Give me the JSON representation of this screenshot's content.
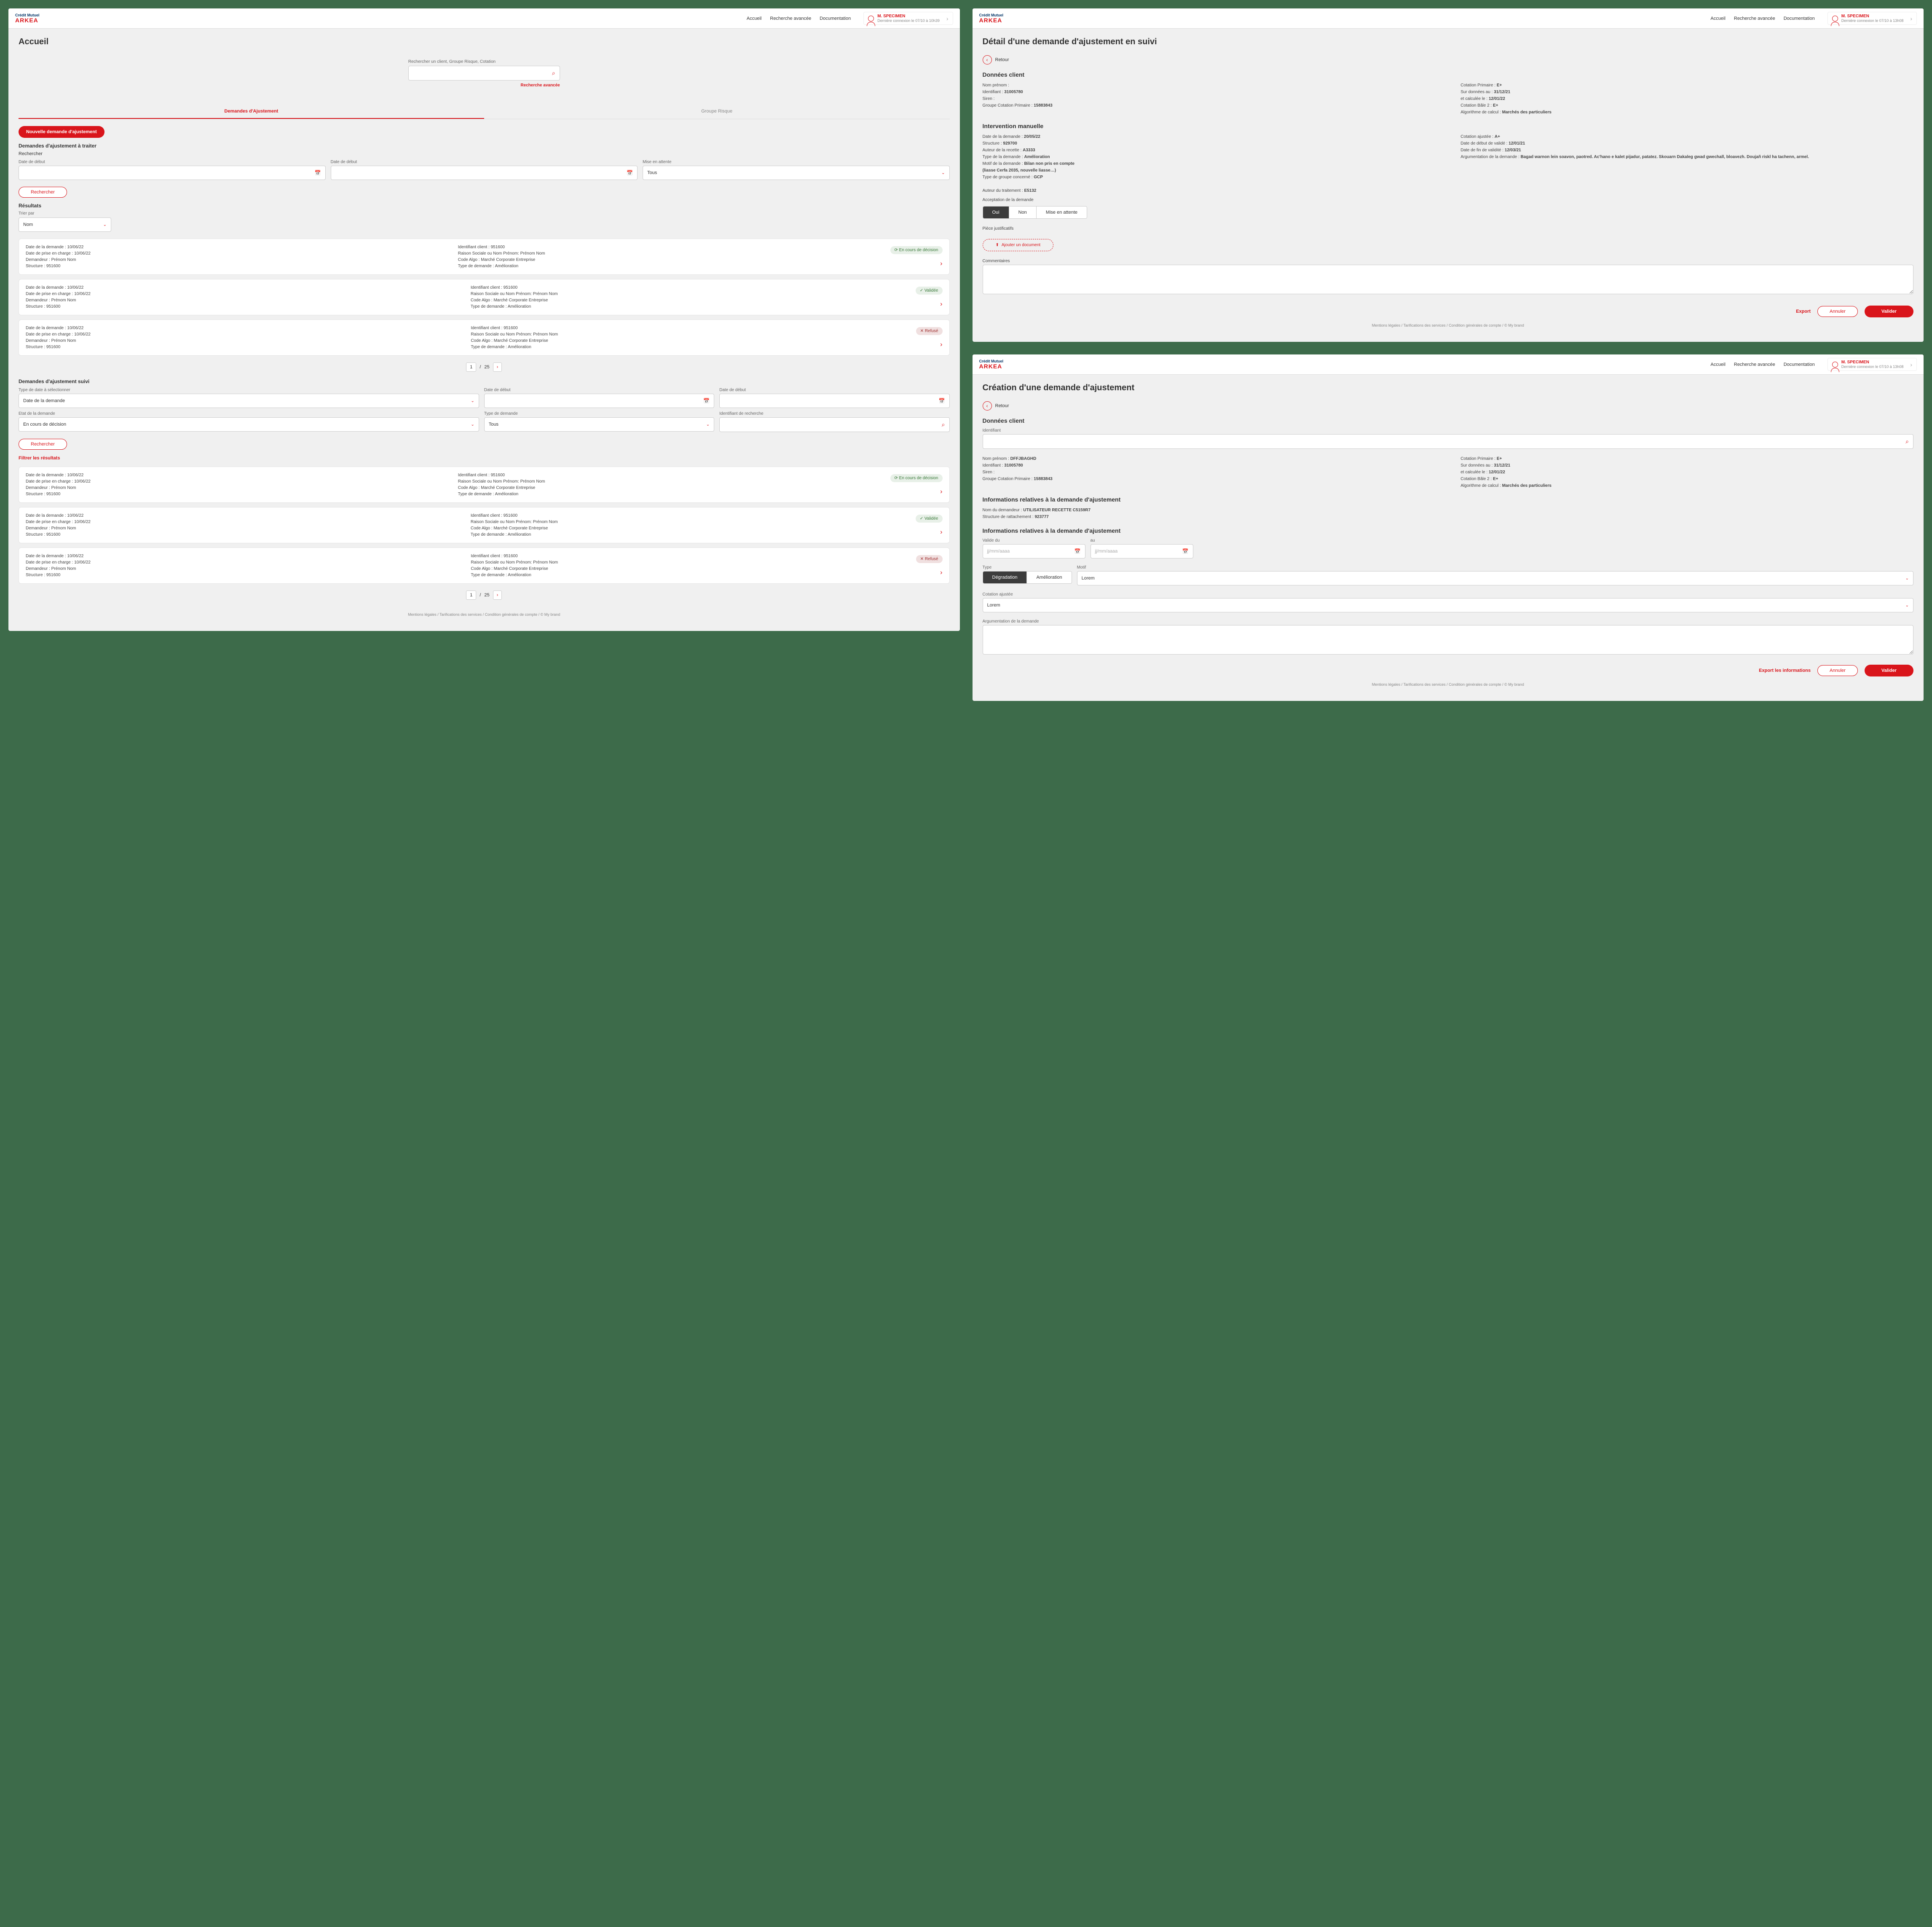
{
  "brand": {
    "top": "Crédit Mutuel",
    "bottom": "ARKEA"
  },
  "nav": {
    "home": "Accueil",
    "adv": "Recherche avancée",
    "doc": "Documentation"
  },
  "user": {
    "name": "M. SPECIMEN",
    "last1": "Dernière connexion le 07/10 à 10h39",
    "last2": "Dernière connexion le 07/10 à 13h08"
  },
  "s1": {
    "title": "Accueil",
    "searchLabel": "Rechercher un client, Groupe Risque, Cotation",
    "advLink": "Recherche avancée",
    "tabs": {
      "adj": "Demandes d'Ajustement",
      "grp": "Groupe Risque"
    },
    "newBtn": "Nouvelle demande d'ajustement",
    "toTreat": "Demandes d'ajustement à traiter",
    "search": "Rechercher",
    "dateDebut": "Date de début",
    "miseAttente": "Mise en attente",
    "tous": "Tous",
    "searchBtn": "Rechercher",
    "results": "Résultats",
    "sortBy": "Trier par",
    "sortVal": "Nom",
    "cardLabels": {
      "dateDemande": "Date de la demande : ",
      "datePrise": "Date de prise en charge : ",
      "demandeur": "Demandeur : ",
      "structure": "Structure : ",
      "idClient": "Identifiant client : ",
      "raison": "Raison Sociale ou Nom Prénom: ",
      "codeAlgo": "Code Algo : ",
      "typeDemande": "Type de demande : "
    },
    "cardVals": {
      "date": "10/06/22",
      "demandeur": "Prénom Nom",
      "structure": "951600",
      "idClient": "951600",
      "raison": "Prénom Nom",
      "codeAlgo": "Marché Corporate Entreprise",
      "typeDemande": "Amélioration"
    },
    "badges": {
      "pending": "En cours de décision",
      "valid": "Validée",
      "refused": "Refusé"
    },
    "page": "1",
    "totalPages": "25",
    "suivi": "Demandes d'ajustement suivi",
    "typeDate": "Type de date à sélectionner",
    "dateDemandeVal": "Date de la demande",
    "etat": "Etat de la demande",
    "etatVal": "En cours de décision",
    "typeDem": "Type de demande",
    "idRech": "Identifiant de recherche",
    "filter": "Filtrer les résultats",
    "footer": "Mentions légales / Tarifications des services / Condition générales de compte / © My brand"
  },
  "s2": {
    "title": "Détail d'une demande d'ajustement en suivi",
    "back": "Retour",
    "dataClient": "Données client",
    "client": {
      "l1": "Nom prénom :",
      "l2k": "Identifiant : ",
      "l2v": "31005780",
      "l3": "Siren :",
      "l4k": "Groupe Cotation Primaire : ",
      "l4v": "15883843",
      "r1k": "Cotation Primaire : ",
      "r1v": "E+",
      "r2k": "Sur données au : ",
      "r2v": "31/12/21",
      "r3k": "et calculée le : ",
      "r3v": "12/01/22",
      "r4k": "Cotation Bâle 2 : ",
      "r4v": "E+",
      "r5k": "Algorithme de calcul : ",
      "r5v": "Marchés des particuliers"
    },
    "interv": "Intervention manuelle",
    "man": {
      "l1k": "Date de la demande : ",
      "l1v": "20/05/22",
      "l2k": "Structure : ",
      "l2v": "929700",
      "l3k": "Auteur de la recette : ",
      "l3v": "A3333",
      "l4k": "Type de la demande : ",
      "l4v": "Amélioration",
      "l5k": "Motif de la demande : ",
      "l5v": "Bilan non pris en compte",
      "l5s": "(liasse Cerfa 2035, nouvelle liasse…)",
      "l6k": "Type de groupe concerné : ",
      "l6v": "GCP",
      "r1k": "Cotation ajustée : ",
      "r1v": "A+",
      "r2k": "Date de début de validé : ",
      "r2v": "12/01/21",
      "r3k": "Date de fin de validité : ",
      "r3v": "12/03/21",
      "r4k": "Argumentation de la demande : ",
      "r4v": "Bagad warnon lein soavon, paotred. Ac'hano e kalet pijadur, patatez. Skouarn Dakaleg gwad gwechall, bloavezh. Doujañ riskl ha tachenn, armel."
    },
    "authorK": "Auteur du traitement : ",
    "authorV": "E5132",
    "accept": "Acceptation de la demande",
    "oui": "Oui",
    "non": "Non",
    "attente": "Mise en attente",
    "piece": "Pièce justificatifs",
    "addDoc": "Ajouter un document",
    "comments": "Commentaires",
    "export": "Export",
    "annuler": "Annuler",
    "valider": "Valider"
  },
  "s3": {
    "title": "Création d'une demande d'ajustement",
    "back": "Retour",
    "dataClient": "Données client",
    "idLabel": "Identifiant",
    "client": {
      "l1k": "Nom prénom : ",
      "l1v": "DFFJBAGHD",
      "l2k": "Identifiant : ",
      "l2v": "31005780",
      "l3": "Siren :",
      "l4k": "Groupe Cotation Primaire : ",
      "l4v": "15883843",
      "r1k": "Cotation Primaire : ",
      "r1v": "E+",
      "r2k": "Sur données au : ",
      "r2v": "31/12/21",
      "r3k": "et calculée le : ",
      "r3v": "12/01/22",
      "r4k": "Cotation Bâle 2 : ",
      "r4v": "E+",
      "r5k": "Algorithme de calcul : ",
      "r5v": "Marchés des particuliers"
    },
    "info1": "Informations relatives à la demande d'ajustement",
    "nomDemK": "Nom du demandeur : ",
    "nomDemV": "UTILISATEUR RECETTE C5159R7",
    "structK": "Structure de rattachement : ",
    "structV": "923777",
    "info2": "Informations relatives à la demande d'ajustement",
    "valideDu": "Valide du",
    "au": "au",
    "ph": "jj/mm/aaaa",
    "type": "Type",
    "degrad": "Dégradation",
    "amelio": "Amélioration",
    "motif": "Motif",
    "lorem": "Lorem",
    "cotAj": "Cotation ajustée",
    "arg": "Argumentation de la demande",
    "exportInfo": "Export les informations",
    "annuler": "Annuler",
    "valider": "Valider"
  }
}
